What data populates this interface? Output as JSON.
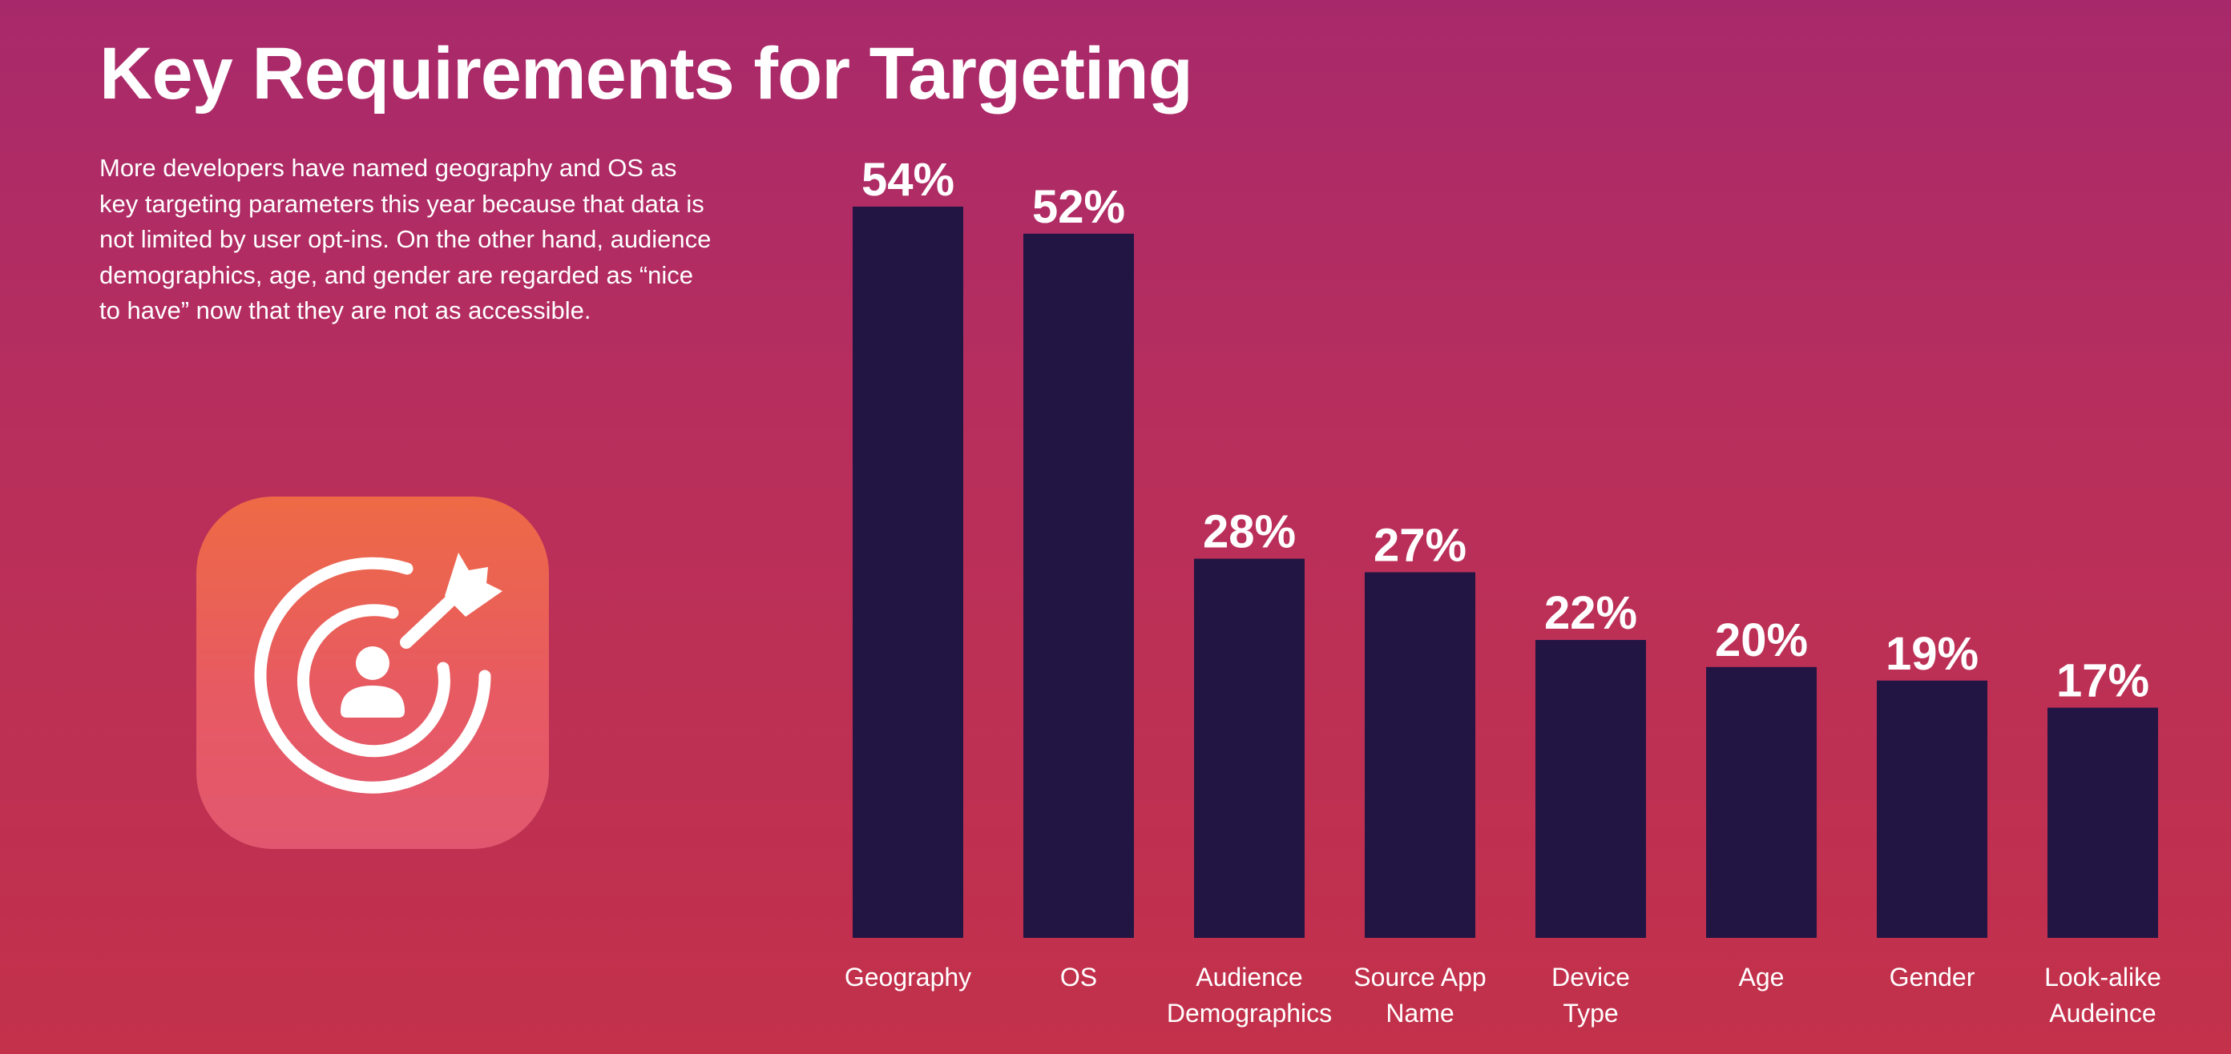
{
  "page": {
    "title": "Key Requirements for Targeting",
    "description": "More developers have named geography and OS as key targeting parameters this year because that data is not limited by user opt-ins. On the other hand, audience demographics, age, and gender are regarded as “nice to have” now that they are not as accessible."
  },
  "icon": {
    "name": "target-user-dart-icon"
  },
  "colors": {
    "bar": "#221543",
    "text": "#ffffff"
  },
  "chart_data": {
    "type": "bar",
    "categories": [
      [
        "Geography"
      ],
      [
        "OS"
      ],
      [
        "Audience",
        "Demographics"
      ],
      [
        "Source App",
        "Name"
      ],
      [
        "Device",
        "Type"
      ],
      [
        "Age"
      ],
      [
        "Gender"
      ],
      [
        "Look-alike",
        "Audeince"
      ]
    ],
    "values": [
      54,
      52,
      28,
      27,
      22,
      20,
      19,
      17
    ],
    "value_labels": [
      "54%",
      "52%",
      "28%",
      "27%",
      "22%",
      "20%",
      "19%",
      "17%"
    ],
    "ylim": [
      0,
      54
    ],
    "grid": false,
    "legend": "none"
  }
}
